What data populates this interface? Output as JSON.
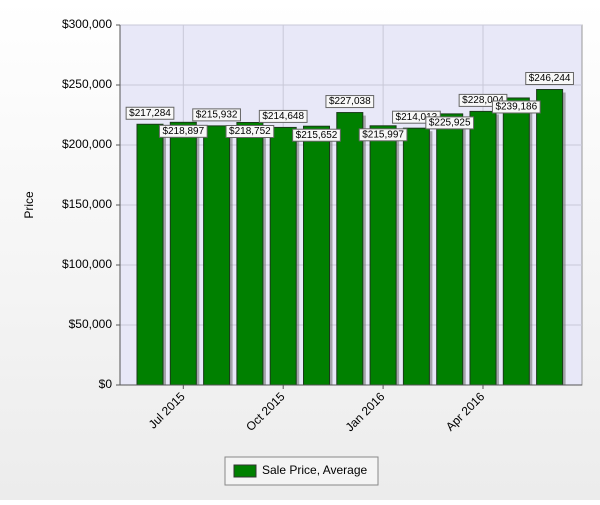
{
  "chart_data": {
    "type": "bar",
    "y_label": "Price",
    "categories": [
      null,
      "Jul 2015",
      null,
      null,
      "Oct 2015",
      null,
      null,
      "Jan 2016",
      null,
      null,
      "Apr 2016",
      null,
      null
    ],
    "series": [
      {
        "name": "Sale Price, Average",
        "color": "#008000",
        "values": [
          217284,
          218897,
          215932,
          218752,
          214648,
          215652,
          227038,
          215997,
          214013,
          225925,
          228004,
          239186,
          246244
        ],
        "value_labels": [
          "$217,284",
          "$218,897",
          "$215,932",
          "$218,752",
          "$214,648",
          "$215,652",
          "$227,038",
          "$215,997",
          "$214,013",
          "$225,925",
          "$228,004",
          "$239,186",
          "$246,244"
        ]
      }
    ],
    "ylim": [
      0,
      300000
    ],
    "yticks": [
      {
        "value": 0,
        "label": "$0"
      },
      {
        "value": 50000,
        "label": "$50,000"
      },
      {
        "value": 100000,
        "label": "$100,000"
      },
      {
        "value": 150000,
        "label": "$150,000"
      },
      {
        "value": 200000,
        "label": "$200,000"
      },
      {
        "value": 250000,
        "label": "$250,000"
      },
      {
        "value": 300000,
        "label": "$300,000"
      }
    ],
    "grid": true
  }
}
